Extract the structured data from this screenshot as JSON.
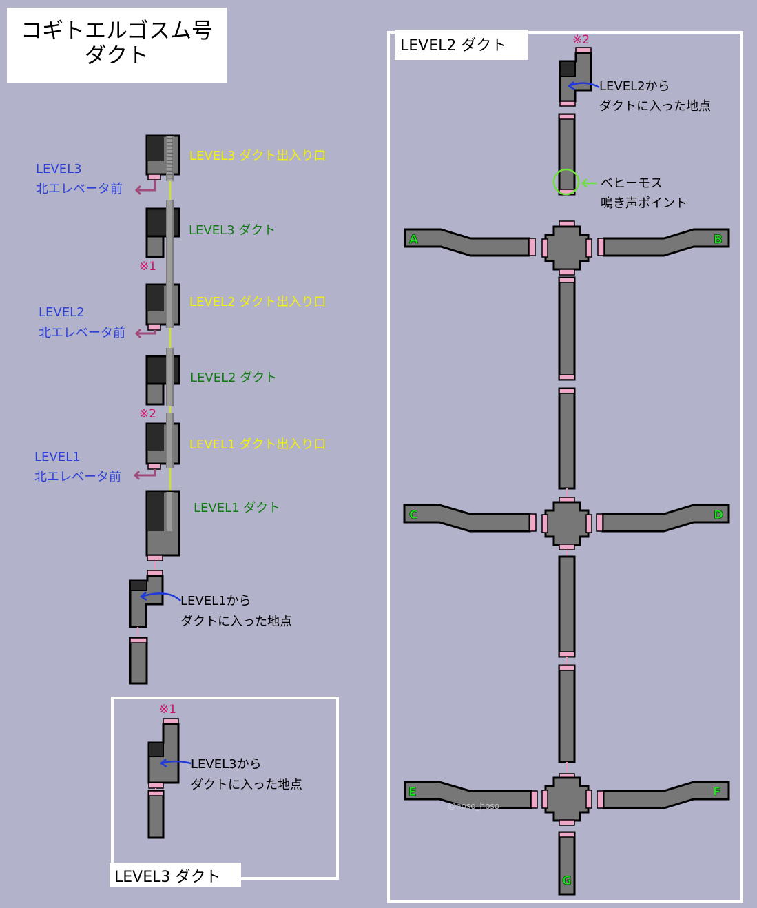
{
  "title": {
    "line1": "コギトエルゴスム号",
    "line2": "ダクト"
  },
  "left": {
    "labels": {
      "l3_entrance": "LEVEL3 ダクト出入り口",
      "l3_duct": "LEVEL3 ダクト",
      "l2_entrance": "LEVEL2 ダクト出入り口",
      "l2_duct": "LEVEL2 ダクト",
      "l1_entrance": "LEVEL1 ダクト出入り口",
      "l1_duct": "LEVEL1 ダクト"
    },
    "elevators": {
      "l3_line1": "LEVEL3",
      "l3_line2": "北エレベータ前",
      "l2_line1": "LEVEL2",
      "l2_line2": "北エレベータ前",
      "l1_line1": "LEVEL1",
      "l1_line2": "北エレベータ前"
    },
    "marks": {
      "m1": "※1",
      "m2": "※2"
    },
    "l1_entry": {
      "line1": "LEVEL1から",
      "line2": "ダクトに入った地点"
    }
  },
  "level3_box": {
    "title": "LEVEL3 ダクト",
    "mark": "※1",
    "entry_line1": "LEVEL3から",
    "entry_line2": "ダクトに入った地点"
  },
  "level2_box": {
    "title": "LEVEL2 ダクト",
    "mark": "※2",
    "entry_line1": "LEVEL2から",
    "entry_line2": "ダクトに入った地点",
    "behemoth_line1": "ベヒーモス",
    "behemoth_line2": "鳴き声ポイント",
    "exits": {
      "a": "A",
      "b": "B",
      "c": "C",
      "d": "D",
      "e": "E",
      "f": "F",
      "g": "G"
    },
    "watermark": "@hoso_hoso"
  },
  "colors": {
    "background": "#b2b2cb",
    "duct": "#777777",
    "pink": "#f0a8c8",
    "yellow_label": "#f2f20a",
    "green_label": "#127a12",
    "blue_label": "#2d3fd6",
    "magenta_mark": "#d0116a",
    "exit_green": "#1fe01f"
  }
}
